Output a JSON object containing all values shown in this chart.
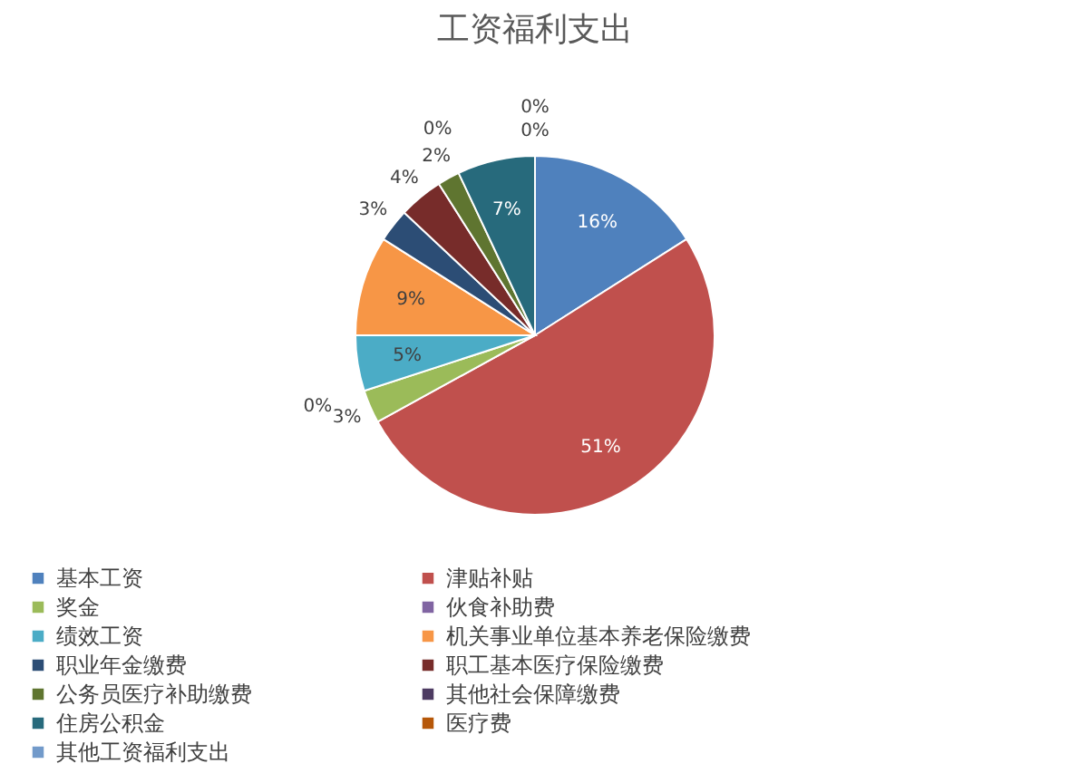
{
  "chart_data": {
    "type": "pie",
    "title": "工资福利支出",
    "categories": [
      "基本工资",
      "津贴补贴",
      "奖金",
      "伙食补助费",
      "绩效工资",
      "机关事业单位基本养老保险缴费",
      "职业年金缴费",
      "职工基本医疗保险缴费",
      "公务员医疗补助缴费",
      "其他社会保障缴费",
      "住房公积金",
      "医疗费",
      "其他工资福利支出"
    ],
    "values": [
      16,
      51,
      3,
      0,
      5,
      9,
      3,
      4,
      2,
      0,
      7,
      0,
      0
    ],
    "value_labels": [
      "16%",
      "51%",
      "3%",
      "0%",
      "5%",
      "9%",
      "3%",
      "4%",
      "2%",
      "0%",
      "7%",
      "0%",
      "0%"
    ],
    "colors": [
      "#4f81bd",
      "#c0504d",
      "#9bbb59",
      "#8064a2",
      "#4bacc6",
      "#f79646",
      "#2c4d75",
      "#772c2a",
      "#5f7530",
      "#4d3b62",
      "#276a7c",
      "#b65708",
      "#729aca"
    ],
    "legend": "bottom"
  }
}
